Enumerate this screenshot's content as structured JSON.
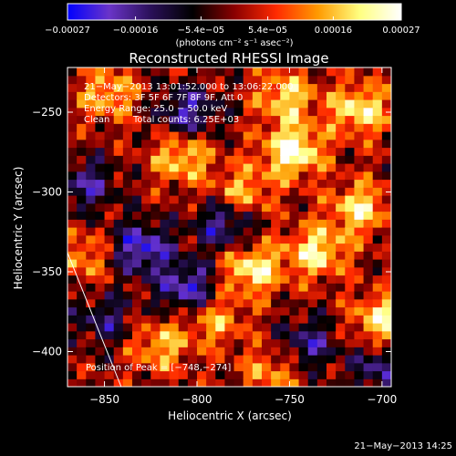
{
  "chart_data": {
    "type": "heatmap",
    "title": "Reconstructed RHESSI Image",
    "xlabel": "Heliocentric X (arcsec)",
    "ylabel": "Heliocentric Y (arcsec)",
    "xlim": [
      -870,
      -695
    ],
    "ylim": [
      -422,
      -222
    ],
    "x_ticks": [
      -850,
      -800,
      -750,
      -700
    ],
    "x_tick_labels": [
      "−850",
      "−800",
      "−750",
      "−700"
    ],
    "y_ticks": [
      -250,
      -300,
      -350,
      -400
    ],
    "y_tick_labels": [
      "−250",
      "−300",
      "−350",
      "−400"
    ],
    "colorbar": {
      "range": [
        -0.00027,
        0.00027
      ],
      "tick_values": [
        -0.00027,
        -0.00016,
        -5.4e-05,
        5.4e-05,
        0.00016,
        0.00027
      ],
      "tick_labels": [
        "−0.00027",
        "−0.00016",
        "−5.4e−05",
        "5.4e−05",
        "0.00016",
        "0.00027"
      ],
      "unit_label": "(photons cm⁻² s⁻¹ asec⁻²)",
      "colors": [
        "#0000ff",
        "#6a34c8",
        "#2a1058",
        "#000000",
        "#8a0000",
        "#ff2a00",
        "#ff9a00",
        "#ffff80",
        "#ffffff"
      ]
    },
    "annotations": {
      "line1": "21−May−2013 13:01:52.000 to 13:06:22.000",
      "line2": "Detectors: 3F 5F 6F 7F 8F 9F, Att 0",
      "line3": "Energy Range: 25.0 − 50.0 keV",
      "line4_label": "Clean",
      "line4_counts": "Total counts: 6.25E+03",
      "peak": "Position of Peak = [−748,−274]"
    },
    "peak_position": [
      -748,
      -274
    ],
    "limb_line": [
      [
        -870,
        -338
      ],
      [
        -841,
        -422
      ]
    ],
    "bright_regions": [
      {
        "x": -748,
        "y": -274,
        "level": 1.0
      },
      {
        "x": -712,
        "y": -248,
        "level": 0.8
      },
      {
        "x": -770,
        "y": -348,
        "level": 0.85
      },
      {
        "x": -735,
        "y": -337,
        "level": 0.8
      },
      {
        "x": -712,
        "y": -310,
        "level": 0.75
      },
      {
        "x": -700,
        "y": -380,
        "level": 0.8
      },
      {
        "x": -808,
        "y": -278,
        "level": 0.7
      },
      {
        "x": -752,
        "y": -240,
        "level": 0.7
      },
      {
        "x": -775,
        "y": -300,
        "level": 0.6
      },
      {
        "x": -848,
        "y": -238,
        "level": 0.6
      },
      {
        "x": -862,
        "y": -340,
        "level": 0.5
      },
      {
        "x": -820,
        "y": -396,
        "level": 0.6
      },
      {
        "x": -790,
        "y": -380,
        "level": 0.55
      },
      {
        "x": -760,
        "y": -412,
        "level": 0.5
      }
    ],
    "dark_regions": [
      {
        "x": -830,
        "y": -335,
        "level": -0.85
      },
      {
        "x": -805,
        "y": -360,
        "level": -0.8
      },
      {
        "x": -805,
        "y": -250,
        "level": -0.7
      },
      {
        "x": -785,
        "y": -320,
        "level": -0.7
      },
      {
        "x": -860,
        "y": -295,
        "level": -0.6
      },
      {
        "x": -740,
        "y": -395,
        "level": -0.6
      },
      {
        "x": -700,
        "y": -410,
        "level": -0.6
      },
      {
        "x": -850,
        "y": -380,
        "level": -0.5
      }
    ]
  },
  "footer": {
    "timestamp": "21−May−2013 14:25"
  }
}
